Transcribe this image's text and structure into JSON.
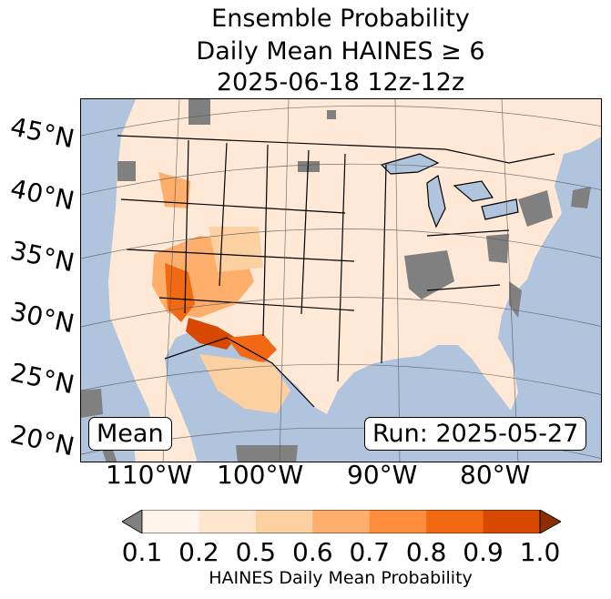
{
  "title": {
    "line1": "Ensemble Probability",
    "line2": "Daily Mean HAINES ≥ 6",
    "line3": "2025-06-18 12z-12z"
  },
  "map": {
    "ocean_color": "#b0c4de",
    "land_color": "#ffffff",
    "missing_color": "#808080",
    "lat_labels": [
      "45°N",
      "40°N",
      "35°N",
      "30°N",
      "25°N",
      "20°N"
    ],
    "lon_labels": [
      "110°W",
      "100°W",
      "90°W",
      "80°W"
    ],
    "stat_box": "Mean",
    "run_box": "Run: 2025-05-27"
  },
  "colorbar": {
    "ticks": [
      "0.1",
      "0.2",
      "0.5",
      "0.6",
      "0.7",
      "0.8",
      "0.9",
      "1.0"
    ],
    "colors": [
      "#fff5eb",
      "#fee6ce",
      "#fdd0a2",
      "#fdae6b",
      "#fd8d3c",
      "#f16913",
      "#d94801",
      "#8c2d04"
    ],
    "under_color": "#808080",
    "label": "HAINES Daily Mean Probability"
  }
}
